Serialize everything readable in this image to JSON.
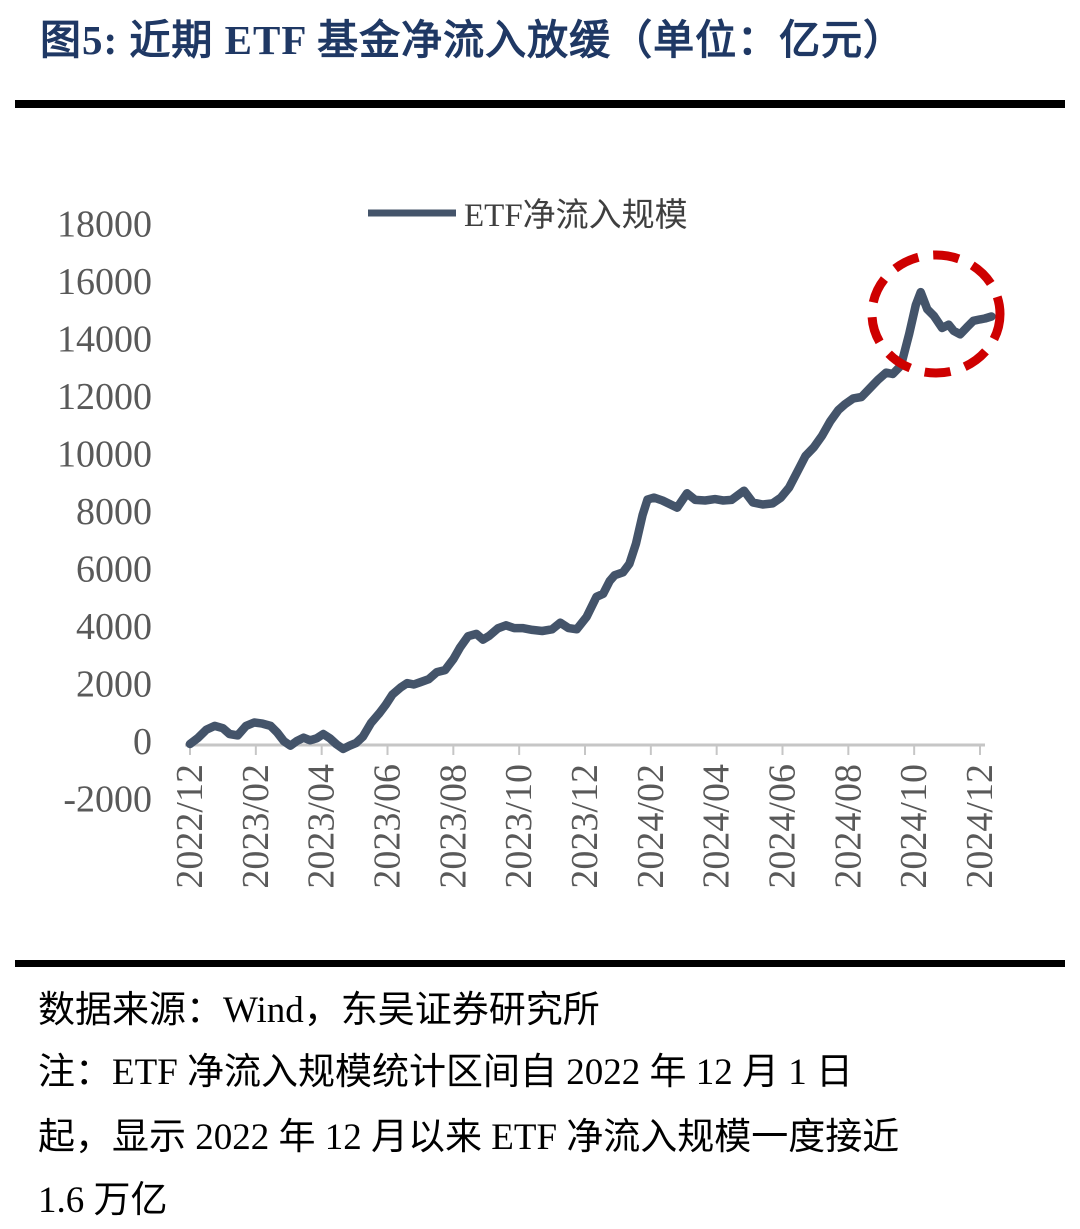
{
  "title": "图5:  近期 ETF 基金净流入放缓（单位：亿元）",
  "colors": {
    "title_navy": "#1F3864",
    "series_line": "#44546A",
    "axis_gray": "#C6C6C6",
    "tick_text_gray": "#595959",
    "legend_text": "#3F3F3F",
    "annotation_red": "#CE0000",
    "footer_black": "#000000"
  },
  "chart_data": {
    "type": "line",
    "title": "近期 ETF 基金净流入放缓",
    "unit": "亿元",
    "legend_position": "top-center",
    "grid": "off",
    "categories": [
      "2022/12",
      "2023/02",
      "2023/04",
      "2023/06",
      "2023/08",
      "2023/10",
      "2023/12",
      "2024/02",
      "2024/04",
      "2024/06",
      "2024/08",
      "2024/10",
      "2024/12"
    ],
    "x_note": "series points use months offset from 2022/12 (daily cumulative data)",
    "y_axis": {
      "min": -2000,
      "max": 18000,
      "tick_step": 2000,
      "ticks": [
        18000,
        16000,
        14000,
        12000,
        10000,
        8000,
        6000,
        4000,
        2000,
        0,
        -2000
      ]
    },
    "series": [
      {
        "name": "ETF净流入规模",
        "points": [
          [
            0,
            -70
          ],
          [
            0.25,
            150
          ],
          [
            0.5,
            430
          ],
          [
            0.75,
            560
          ],
          [
            1,
            480
          ],
          [
            1.2,
            280
          ],
          [
            1.45,
            230
          ],
          [
            1.7,
            560
          ],
          [
            1.95,
            680
          ],
          [
            2.2,
            640
          ],
          [
            2.45,
            560
          ],
          [
            2.65,
            330
          ],
          [
            2.85,
            30
          ],
          [
            3.05,
            -130
          ],
          [
            3.25,
            40
          ],
          [
            3.45,
            150
          ],
          [
            3.65,
            60
          ],
          [
            3.85,
            130
          ],
          [
            4.05,
            280
          ],
          [
            4.25,
            130
          ],
          [
            4.45,
            -80
          ],
          [
            4.65,
            -240
          ],
          [
            4.85,
            -130
          ],
          [
            5.05,
            -30
          ],
          [
            5.25,
            180
          ],
          [
            5.5,
            660
          ],
          [
            5.75,
            1000
          ],
          [
            5.95,
            1300
          ],
          [
            6.15,
            1650
          ],
          [
            6.4,
            1900
          ],
          [
            6.6,
            2050
          ],
          [
            6.8,
            2000
          ],
          [
            7,
            2080
          ],
          [
            7.25,
            2180
          ],
          [
            7.5,
            2430
          ],
          [
            7.75,
            2500
          ],
          [
            8,
            2880
          ],
          [
            8.2,
            3280
          ],
          [
            8.45,
            3680
          ],
          [
            8.7,
            3760
          ],
          [
            8.9,
            3560
          ],
          [
            9.1,
            3700
          ],
          [
            9.35,
            3950
          ],
          [
            9.6,
            4060
          ],
          [
            9.85,
            3960
          ],
          [
            10.1,
            3960
          ],
          [
            10.4,
            3900
          ],
          [
            10.7,
            3860
          ],
          [
            11,
            3920
          ],
          [
            11.25,
            4150
          ],
          [
            11.5,
            3960
          ],
          [
            11.75,
            3920
          ],
          [
            12.05,
            4350
          ],
          [
            12.35,
            5050
          ],
          [
            12.55,
            5150
          ],
          [
            12.75,
            5600
          ],
          [
            12.9,
            5800
          ],
          [
            13.15,
            5900
          ],
          [
            13.35,
            6200
          ],
          [
            13.55,
            6900
          ],
          [
            13.75,
            7900
          ],
          [
            13.9,
            8430
          ],
          [
            14.1,
            8500
          ],
          [
            14.35,
            8400
          ],
          [
            14.8,
            8150
          ],
          [
            15.1,
            8650
          ],
          [
            15.35,
            8420
          ],
          [
            15.65,
            8400
          ],
          [
            15.95,
            8450
          ],
          [
            16.2,
            8400
          ],
          [
            16.45,
            8420
          ],
          [
            16.83,
            8740
          ],
          [
            17.1,
            8330
          ],
          [
            17.4,
            8260
          ],
          [
            17.7,
            8300
          ],
          [
            17.95,
            8500
          ],
          [
            18.2,
            8850
          ],
          [
            18.45,
            9400
          ],
          [
            18.7,
            9950
          ],
          [
            18.95,
            10250
          ],
          [
            19.2,
            10650
          ],
          [
            19.45,
            11150
          ],
          [
            19.7,
            11550
          ],
          [
            19.9,
            11750
          ],
          [
            20.15,
            11950
          ],
          [
            20.4,
            12000
          ],
          [
            20.65,
            12300
          ],
          [
            20.9,
            12600
          ],
          [
            21.15,
            12850
          ],
          [
            21.35,
            12800
          ],
          [
            21.6,
            13100
          ],
          [
            21.85,
            14200
          ],
          [
            22.05,
            15200
          ],
          [
            22.2,
            15650
          ],
          [
            22.4,
            15050
          ],
          [
            22.6,
            14820
          ],
          [
            22.85,
            14400
          ],
          [
            23.05,
            14520
          ],
          [
            23.2,
            14300
          ],
          [
            23.4,
            14180
          ],
          [
            23.6,
            14420
          ],
          [
            23.8,
            14650
          ],
          [
            24,
            14700
          ],
          [
            24.15,
            14730
          ],
          [
            24.35,
            14800
          ]
        ]
      }
    ],
    "annotation": {
      "shape": "dashed-circle",
      "meaning": "近期净流入放缓区域（2024/10 峰值约 15650 亿元附近）"
    }
  },
  "footer": {
    "source": "数据来源：Wind，东吴证券研究所",
    "note1": "注：ETF 净流入规模统计区间自 2022 年 12 月 1 日",
    "note2": "起，显示 2022 年 12 月以来 ETF 净流入规模一度接近",
    "note3": "1.6 万亿"
  }
}
